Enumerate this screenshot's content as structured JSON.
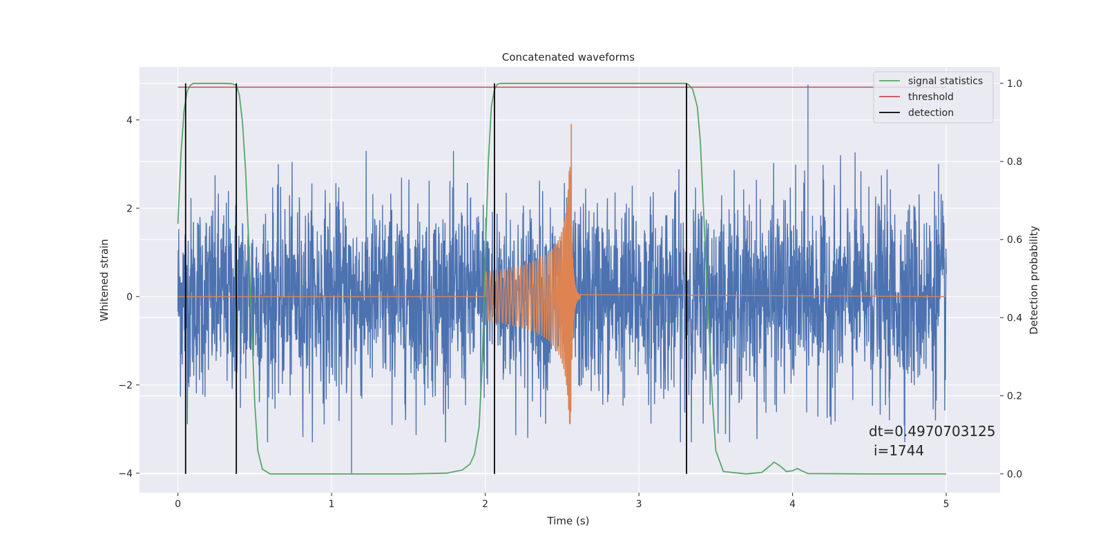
{
  "chart_data": {
    "type": "line",
    "title": "Concatenated waveforms",
    "xlabel": "Time (s)",
    "ylabel": "Whitened strain",
    "y2label": "Detection probability",
    "xlim": [
      -0.25,
      5.35
    ],
    "ylim": [
      -4.44,
      5.2
    ],
    "y2lim": [
      -0.048,
      1.042
    ],
    "xticks": [
      0,
      1,
      2,
      3,
      4,
      5
    ],
    "yticks": [
      -4,
      -2,
      0,
      2,
      4
    ],
    "y2ticks": [
      0.0,
      0.2,
      0.4,
      0.6,
      0.8,
      1.0
    ],
    "xtick_labels": [
      "0",
      "1",
      "2",
      "3",
      "4",
      "5"
    ],
    "ytick_labels": [
      "−4",
      "−2",
      "0",
      "2",
      "4"
    ],
    "y2tick_labels": [
      "0.0",
      "0.2",
      "0.4",
      "0.6",
      "0.8",
      "1.0"
    ],
    "grid": true,
    "legend_position": "top-right",
    "colors": {
      "noise": "#4c72b0",
      "chirp": "#dd8452",
      "signal_statistics": "#55a868",
      "threshold": "#c44e52",
      "detection": "#000000",
      "background": "#eaeaf2"
    },
    "legend": [
      "signal statistics",
      "threshold",
      "detection"
    ],
    "series": [
      {
        "name": "signal statistics",
        "axis": "right",
        "x": [
          0.0,
          0.02,
          0.04,
          0.06,
          0.08,
          0.1,
          0.15,
          0.2,
          0.3,
          0.35,
          0.38,
          0.4,
          0.42,
          0.44,
          0.46,
          0.48,
          0.5,
          0.52,
          0.55,
          0.6,
          1.0,
          1.5,
          1.75,
          1.85,
          1.9,
          1.93,
          1.96,
          1.98,
          2.0,
          2.02,
          2.04,
          2.06,
          2.08,
          2.1,
          2.15,
          2.5,
          3.0,
          3.3,
          3.32,
          3.35,
          3.38,
          3.4,
          3.42,
          3.45,
          3.48,
          3.5,
          3.55,
          3.7,
          3.8,
          3.85,
          3.88,
          3.92,
          3.96,
          4.0,
          4.03,
          4.06,
          4.1,
          4.5,
          5.0
        ],
        "values": [
          0.64,
          0.82,
          0.93,
          0.98,
          0.995,
          1.0,
          1.0,
          1.0,
          1.0,
          0.999,
          0.995,
          0.97,
          0.9,
          0.78,
          0.6,
          0.38,
          0.18,
          0.06,
          0.012,
          0.0,
          0.0,
          0.0,
          0.002,
          0.01,
          0.025,
          0.05,
          0.12,
          0.28,
          0.55,
          0.8,
          0.94,
          0.985,
          0.998,
          1.0,
          1.0,
          1.0,
          1.0,
          1.0,
          0.998,
          0.985,
          0.94,
          0.85,
          0.68,
          0.42,
          0.18,
          0.06,
          0.006,
          0.0,
          0.004,
          0.02,
          0.03,
          0.02,
          0.006,
          0.008,
          0.014,
          0.008,
          0.001,
          0.0,
          0.0
        ]
      },
      {
        "name": "threshold",
        "axis": "right",
        "x": [
          0.0,
          5.0
        ],
        "values": [
          0.99,
          0.99
        ]
      }
    ],
    "detections": [
      0.05,
      0.38,
      2.06,
      3.31
    ],
    "noise_trace": {
      "x_range": [
        0.0,
        5.0
      ],
      "envelope": 1.1,
      "spikes": [
        {
          "x": 1.13,
          "y": -4.0
        },
        {
          "x": 4.1,
          "y": 4.8
        },
        {
          "x": 4.63,
          "y": -2.8
        },
        {
          "x": 4.95,
          "y": 3.0
        }
      ]
    },
    "chirp_trace": {
      "x_range": [
        2.0,
        2.62
      ],
      "peak_time": 2.56,
      "peak_value": 3.9,
      "min_value": -2.6
    },
    "annotation": {
      "text_line1": "dt=0.4970703125",
      "text_line2": "i=1744"
    }
  }
}
